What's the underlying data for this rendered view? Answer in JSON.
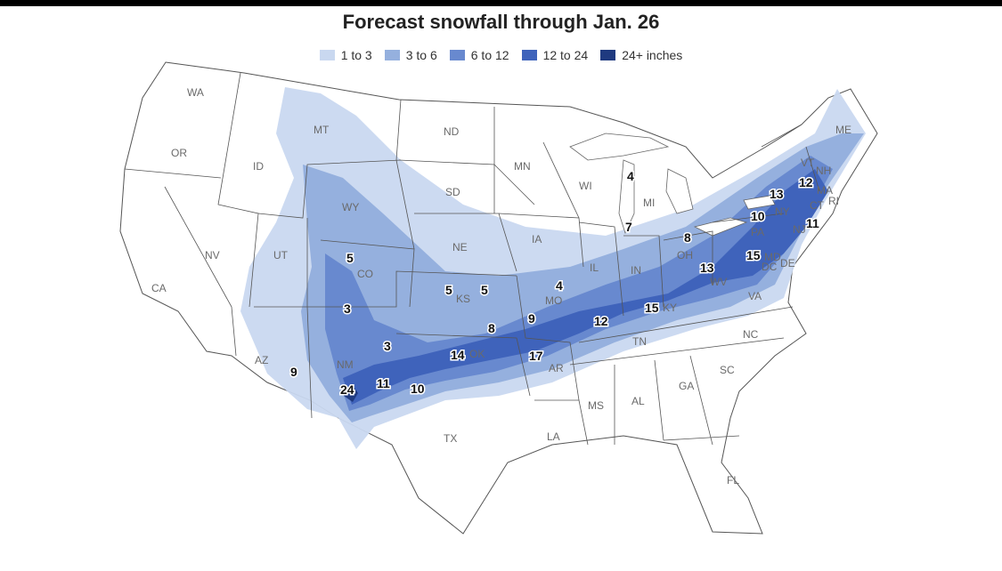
{
  "title": "Forecast snowfall through Jan. 26",
  "legend": [
    {
      "label": "1 to 3",
      "color": "#c9d8f0"
    },
    {
      "label": "3 to 6",
      "color": "#95b0de"
    },
    {
      "label": "6 to 12",
      "color": "#6889cf"
    },
    {
      "label": "12 to 24",
      "color": "#3f63bb"
    },
    {
      "label": "24+ inches",
      "color": "#1f3a80"
    }
  ],
  "states": [
    "WA",
    "OR",
    "CA",
    "ID",
    "NV",
    "MT",
    "WY",
    "UT",
    "AZ",
    "CO",
    "NM",
    "ND",
    "SD",
    "NE",
    "KS",
    "OK",
    "TX",
    "MN",
    "IA",
    "MO",
    "AR",
    "LA",
    "WI",
    "IL",
    "MS",
    "MI",
    "IN",
    "KY",
    "TN",
    "AL",
    "OH",
    "GA",
    "FL",
    "SC",
    "NC",
    "VA",
    "WV",
    "PA",
    "NY",
    "ME",
    "VT",
    "NH",
    "MA",
    "CT",
    "RI",
    "NJ",
    "DE",
    "MD",
    "DC"
  ],
  "snow_totals": [
    "4",
    "7",
    "8",
    "13",
    "12",
    "10",
    "11",
    "5",
    "5",
    "5",
    "4",
    "3",
    "9",
    "13",
    "15",
    "3",
    "8",
    "12",
    "15",
    "14",
    "17",
    "9",
    "24",
    "11",
    "10"
  ]
}
